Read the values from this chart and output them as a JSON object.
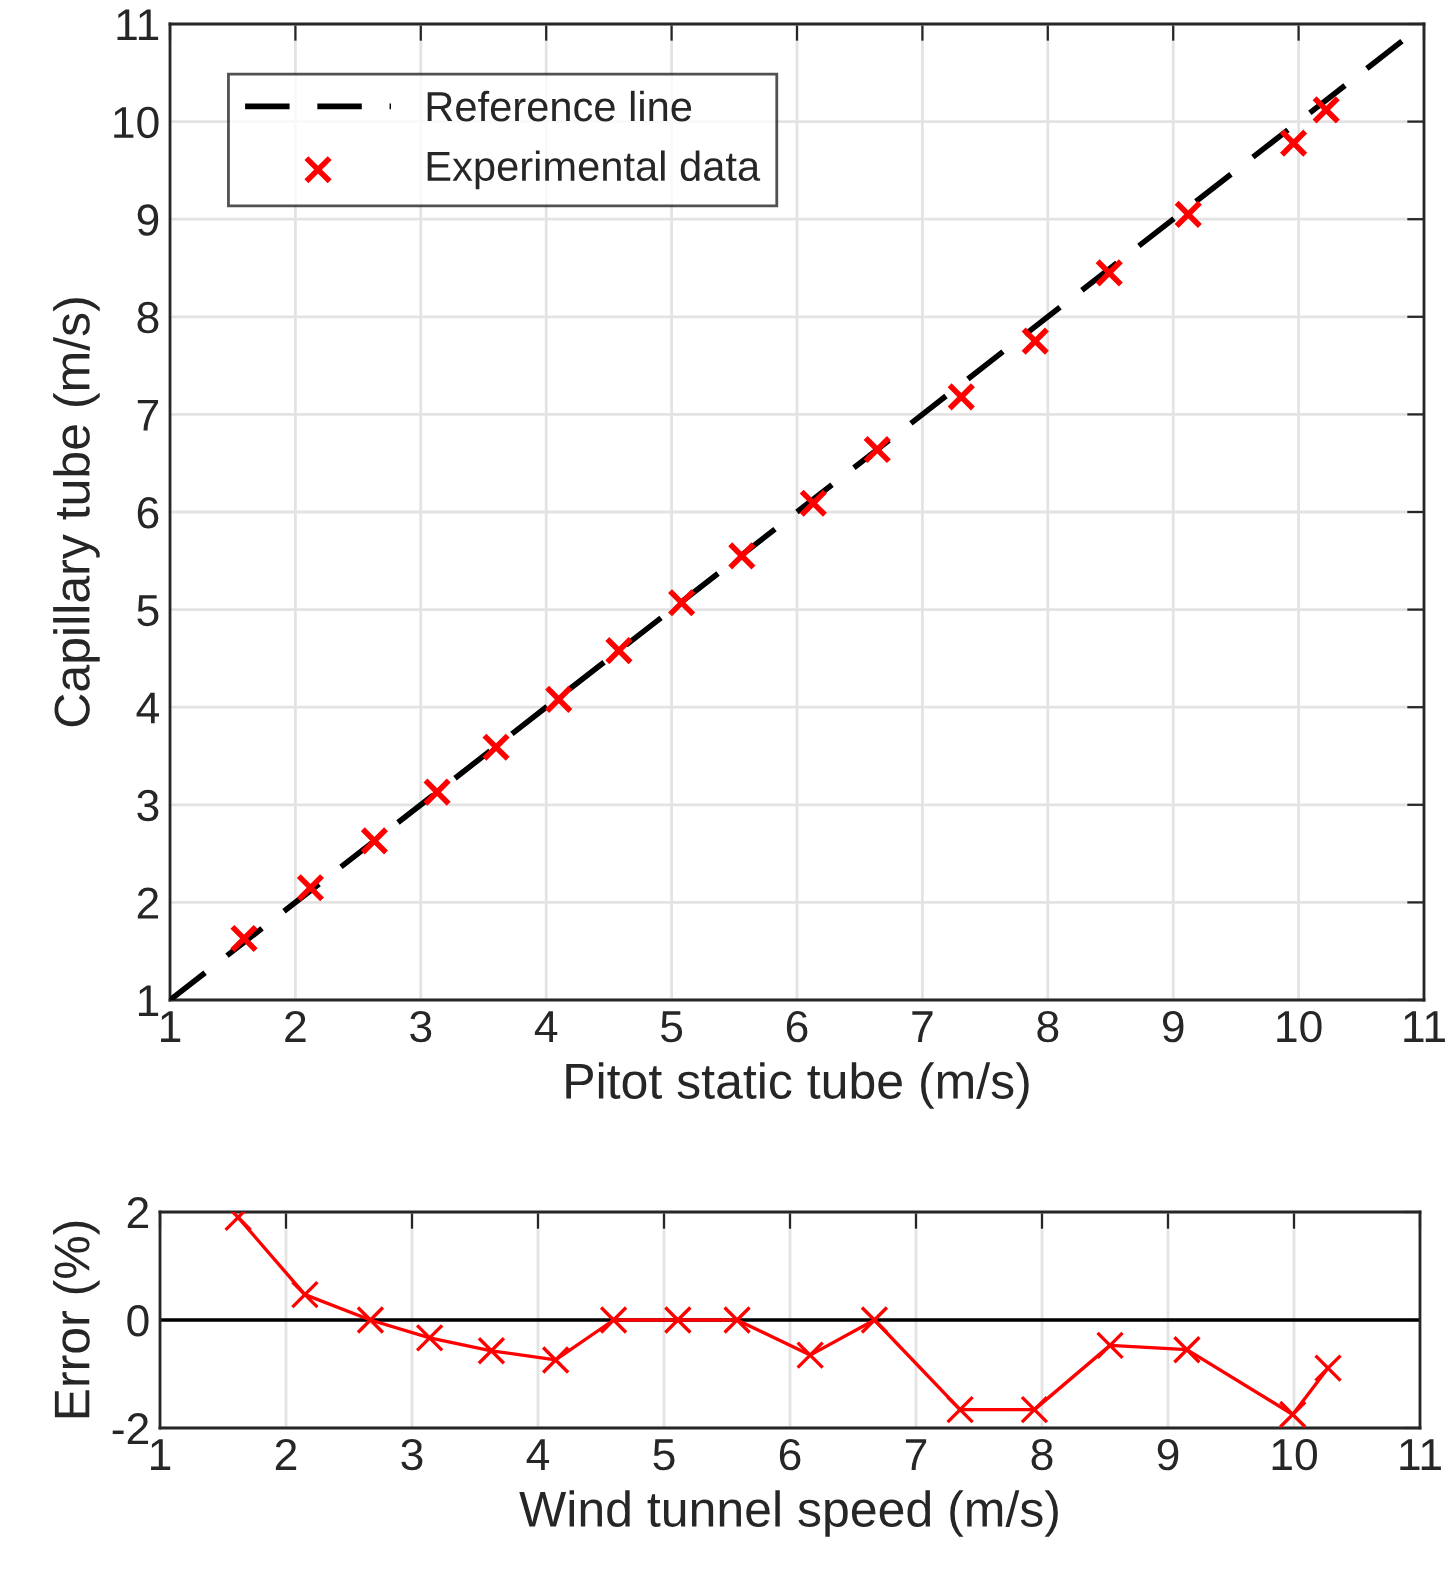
{
  "chart_data": [
    {
      "type": "scatter",
      "xlabel": "Pitot static tube (m/s)",
      "ylabel": "Capillary tube (m/s)",
      "xlim": [
        1,
        11
      ],
      "ylim": [
        1,
        11
      ],
      "xticks": [
        1,
        2,
        3,
        4,
        5,
        6,
        7,
        8,
        9,
        10,
        11
      ],
      "yticks": [
        1,
        2,
        3,
        4,
        5,
        6,
        7,
        8,
        9,
        10,
        11
      ],
      "grid": true,
      "legend": "top left",
      "series": [
        {
          "name": "Reference line",
          "type": "line",
          "color": "#000000",
          "line_style": "dashed",
          "marker": "none",
          "x": [
            1,
            11
          ],
          "values": [
            1,
            11
          ]
        },
        {
          "name": "Experimental data",
          "type": "scatter",
          "color": "#ff0000",
          "marker": "cross",
          "x": [
            1.59,
            2.12,
            2.63,
            3.13,
            3.6,
            4.1,
            4.58,
            5.08,
            5.56,
            6.13,
            6.64,
            7.31,
            7.9,
            8.49,
            9.12,
            9.96,
            10.22
          ],
          "values": [
            1.63,
            2.15,
            2.63,
            3.13,
            3.59,
            4.08,
            4.58,
            5.07,
            5.55,
            6.09,
            6.64,
            7.18,
            7.75,
            8.45,
            9.05,
            9.78,
            10.12
          ]
        }
      ]
    },
    {
      "type": "line",
      "xlabel": "Wind tunnel speed (m/s)",
      "ylabel": "Error (%)",
      "xlim": [
        1,
        11
      ],
      "ylim": [
        -2,
        2
      ],
      "xticks": [
        1,
        2,
        3,
        4,
        5,
        6,
        7,
        8,
        9,
        10,
        11
      ],
      "yticks": [
        {
          "value": -2,
          "label": "-2"
        },
        0,
        2
      ],
      "grid": true,
      "marker": "cross",
      "line_style": "solid",
      "ref_lines": [
        {
          "axis": "y",
          "value": 0,
          "color": "#000000"
        }
      ],
      "series": [
        {
          "color": "#ff0000",
          "x": [
            1.62,
            2.15,
            2.67,
            3.14,
            3.63,
            4.14,
            4.6,
            5.11,
            5.58,
            6.16,
            6.67,
            7.35,
            7.94,
            8.54,
            9.15,
            9.99,
            10.27
          ],
          "values": [
            1.9,
            0.47,
            0,
            -0.33,
            -0.57,
            -0.74,
            0,
            0,
            0,
            -0.65,
            0,
            -1.66,
            -1.66,
            -0.47,
            -0.55,
            -1.75,
            -0.89
          ]
        }
      ]
    }
  ]
}
